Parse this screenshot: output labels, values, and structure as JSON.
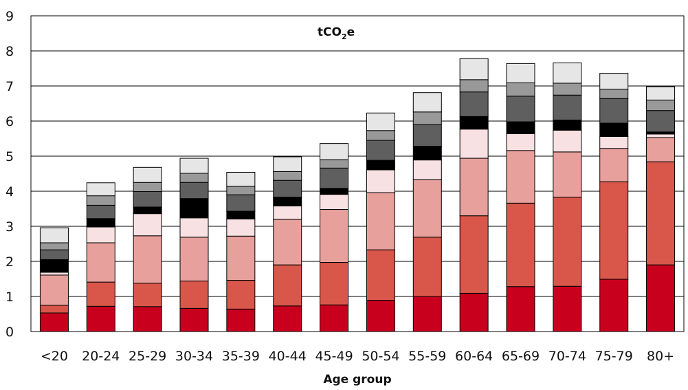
{
  "chart_data": {
    "type": "bar",
    "stacked": true,
    "title": "",
    "unit_label": {
      "main": "tCO",
      "sub": "2",
      "suffix": "e"
    },
    "xlabel": "Age group",
    "ylabel": "",
    "ylim": [
      0,
      9
    ],
    "yticks": [
      0,
      1,
      2,
      3,
      4,
      5,
      6,
      7,
      8,
      9
    ],
    "grid": true,
    "legend": "none",
    "categories": [
      "<20",
      "20-24",
      "25-29",
      "30-34",
      "35-39",
      "40-44",
      "45-49",
      "50-54",
      "55-59",
      "60-64",
      "65-69",
      "70-74",
      "75-79",
      "80+"
    ],
    "tick_labels": [
      "<20",
      "20-24",
      "25-29",
      "30-34",
      "35-39",
      "40-44",
      "45-49",
      "50-54",
      "55-59",
      "60-64",
      "65-69",
      "70-74",
      "75-79",
      "80+"
    ],
    "series": [
      {
        "color": "#c8001e",
        "values": [
          0.53,
          0.72,
          0.71,
          0.66,
          0.64,
          0.73,
          0.76,
          0.89,
          1.0,
          1.09,
          1.28,
          1.29,
          1.49,
          1.9
        ]
      },
      {
        "color": "#d9574a",
        "values": [
          0.22,
          0.69,
          0.67,
          0.78,
          0.82,
          1.17,
          1.21,
          1.44,
          1.69,
          2.21,
          2.38,
          2.54,
          2.78,
          2.94
        ]
      },
      {
        "color": "#e8a09c",
        "values": [
          0.86,
          1.12,
          1.35,
          1.25,
          1.26,
          1.3,
          1.51,
          1.63,
          1.64,
          1.64,
          1.5,
          1.29,
          0.95,
          0.69
        ]
      },
      {
        "color": "#f8e1e3",
        "values": [
          0.08,
          0.45,
          0.63,
          0.55,
          0.49,
          0.38,
          0.43,
          0.65,
          0.56,
          0.83,
          0.48,
          0.62,
          0.34,
          0.1
        ]
      },
      {
        "color": "#000000",
        "values": [
          0.36,
          0.24,
          0.19,
          0.55,
          0.22,
          0.25,
          0.17,
          0.27,
          0.39,
          0.36,
          0.34,
          0.29,
          0.38,
          0.06
        ]
      },
      {
        "color": "#5f5f5f",
        "values": [
          0.28,
          0.38,
          0.44,
          0.46,
          0.47,
          0.48,
          0.58,
          0.57,
          0.62,
          0.7,
          0.73,
          0.71,
          0.7,
          0.61
        ]
      },
      {
        "color": "#999999",
        "values": [
          0.2,
          0.27,
          0.26,
          0.26,
          0.24,
          0.25,
          0.24,
          0.28,
          0.36,
          0.35,
          0.38,
          0.34,
          0.27,
          0.3
        ]
      },
      {
        "color": "#e6e6e6",
        "values": [
          0.43,
          0.37,
          0.43,
          0.43,
          0.4,
          0.42,
          0.46,
          0.5,
          0.55,
          0.6,
          0.55,
          0.58,
          0.45,
          0.38
        ]
      }
    ]
  }
}
